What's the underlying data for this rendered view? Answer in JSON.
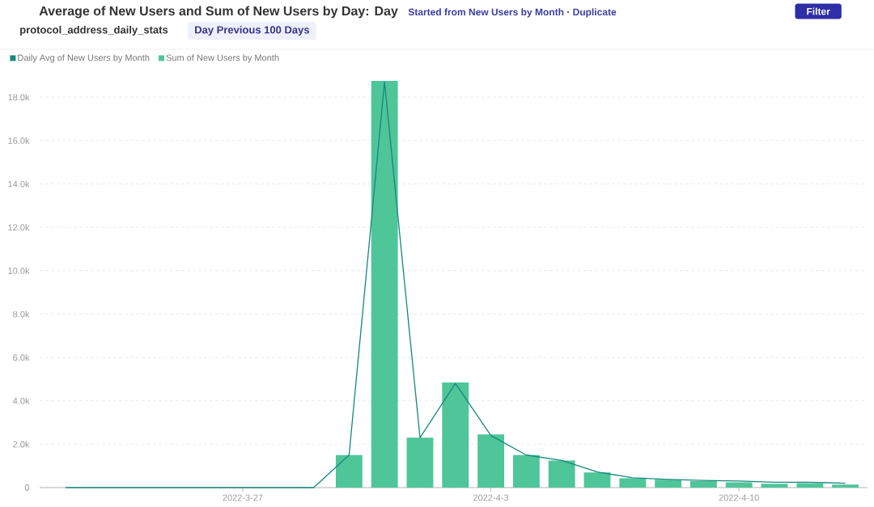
{
  "chart_data": {
    "type": "bar",
    "title": "Average of New Users and Sum of New Users by Day: Day",
    "subtitle": "Started from New Users by Month · Duplicate",
    "annotations": [
      "protocol_address_daily_stats",
      "Day Previous 100 Days",
      "Filter"
    ],
    "series": [
      {
        "name": "Daily Avg of New Users by Month",
        "type": "line",
        "color": "#15897a",
        "x": [
          "2022-03-22",
          "2022-03-23",
          "2022-03-24",
          "2022-03-25",
          "2022-03-26",
          "2022-03-27",
          "2022-03-28",
          "2022-03-29",
          "2022-03-30",
          "2022-03-31",
          "2022-04-01",
          "2022-04-02",
          "2022-04-03",
          "2022-04-04",
          "2022-04-05",
          "2022-04-06",
          "2022-04-07",
          "2022-04-08",
          "2022-04-09",
          "2022-04-10",
          "2022-04-11",
          "2022-04-12",
          "2022-04-13"
        ],
        "values": [
          0,
          0,
          0,
          0,
          0,
          0,
          0,
          0,
          1500,
          18700,
          2300,
          4800,
          2400,
          1500,
          1250,
          720,
          450,
          380,
          330,
          300,
          250,
          250,
          200
        ]
      },
      {
        "name": "Sum of New Users by Month",
        "color": "#4fc59a",
        "x": [
          "2022-03-30",
          "2022-03-31",
          "2022-04-01",
          "2022-04-02",
          "2022-04-03",
          "2022-04-04",
          "2022-04-05",
          "2022-04-06",
          "2022-04-07",
          "2022-04-08",
          "2022-04-09",
          "2022-04-10",
          "2022-04-11",
          "2022-04-12",
          "2022-04-13"
        ],
        "values": [
          1500,
          18750,
          2300,
          4850,
          2450,
          1500,
          1250,
          700,
          430,
          360,
          300,
          240,
          180,
          200,
          140
        ]
      }
    ],
    "xlim": [
      "2022-03-21T06:30",
      "2022-04-13T15:00"
    ],
    "xticks": [
      {
        "value": "2022-03-27",
        "label": "2022-3-27"
      },
      {
        "value": "2022-04-03",
        "label": "2022-4-3"
      },
      {
        "value": "2022-04-10",
        "label": "2022-4-10"
      }
    ],
    "ylim": [
      0,
      18750
    ],
    "yticks": [
      0,
      {
        "value": 2000,
        "label": "2.0k"
      },
      {
        "value": 4000,
        "label": "4.0k"
      },
      {
        "value": 6000,
        "label": "6.0k"
      },
      {
        "value": 8000,
        "label": "8.0k"
      },
      {
        "value": 10000,
        "label": "10.0k"
      },
      {
        "value": 12000,
        "label": "12.0k"
      },
      {
        "value": 14000,
        "label": "14.0k"
      },
      {
        "value": 16000,
        "label": "16.0k"
      },
      {
        "value": 18000,
        "label": "18.0k"
      }
    ],
    "grid": "y",
    "legend": "top left"
  }
}
